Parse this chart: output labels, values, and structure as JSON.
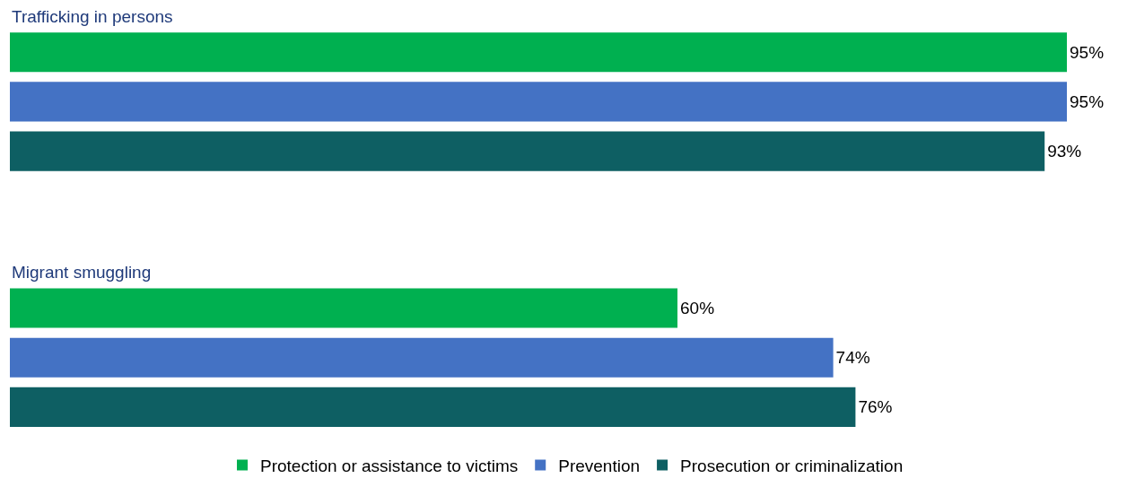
{
  "chart_data": {
    "type": "bar",
    "orientation": "horizontal",
    "categories": [
      "Trafficking in persons",
      "Migrant smuggling"
    ],
    "series": [
      {
        "name": "Protection or assistance to victims",
        "color": "#00b050",
        "values": [
          95,
          60
        ],
        "value_labels": [
          "95%",
          "60%"
        ]
      },
      {
        "name": "Prevention",
        "color": "#4472c4",
        "values": [
          95,
          74
        ],
        "value_labels": [
          "95%",
          "74%"
        ]
      },
      {
        "name": "Prosecution or criminalization",
        "color": "#0e5f63",
        "values": [
          93,
          76
        ],
        "value_labels": [
          "93%",
          "76%"
        ]
      }
    ],
    "legend": "bottom"
  }
}
